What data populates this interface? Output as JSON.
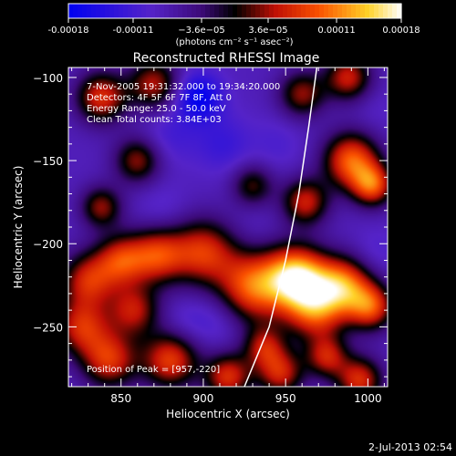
{
  "chart_data": {
    "type": "heatmap",
    "title": "Reconstructed RHESSI Image",
    "xlabel": "Heliocentric X (arcsec)",
    "ylabel": "Heliocentric Y (arcsec)",
    "xlim": [
      818,
      1012
    ],
    "ylim": [
      -286,
      -94
    ],
    "xticks": [
      850,
      900,
      950,
      1000
    ],
    "yticks": [
      -100,
      -150,
      -200,
      -250
    ],
    "colorbar": {
      "min": -0.00018,
      "max": 0.00018,
      "ticks": [
        {
          "value": -0.00018,
          "label": "-0.00018"
        },
        {
          "value": -0.00011,
          "label": "-0.00011"
        },
        {
          "value": -3.6e-05,
          "label": "−3.6e−05"
        },
        {
          "value": 3.6e-05,
          "label": "3.6e−05"
        },
        {
          "value": 0.00011,
          "label": "0.00011"
        },
        {
          "value": 0.00018,
          "label": "0.00018"
        }
      ],
      "units": "(photons cm⁻² s⁻¹ asec⁻²)"
    },
    "annotations": [
      "7-Nov-2005 19:31:32.000 to 19:34:20.000",
      "Detectors: 4F 5F 6F 7F 8F, Att 0",
      "Energy Range: 25.0 - 50.0 keV",
      "Clean    Total counts: 3.84E+03"
    ],
    "peak_label": "Position of Peak = [957,-220]",
    "peak": [
      957,
      -220
    ],
    "limb_curve": [
      [
        925,
        -286
      ],
      [
        940,
        -250
      ],
      [
        950,
        -210
      ],
      [
        958,
        -170
      ],
      [
        964,
        -130
      ],
      [
        969,
        -94
      ]
    ],
    "sources": [
      {
        "x": 957,
        "y": -220,
        "v": 0.00018,
        "r": 13
      },
      {
        "x": 930,
        "y": -226,
        "v": 0.00013,
        "r": 15
      },
      {
        "x": 985,
        "y": -225,
        "v": 0.00013,
        "r": 12
      },
      {
        "x": 1002,
        "y": -238,
        "v": 0.00011,
        "r": 10
      },
      {
        "x": 968,
        "y": -240,
        "v": 0.00011,
        "r": 13
      },
      {
        "x": 900,
        "y": -205,
        "v": 0.0001,
        "r": 14
      },
      {
        "x": 872,
        "y": -207,
        "v": 0.0001,
        "r": 12
      },
      {
        "x": 850,
        "y": -210,
        "v": 9e-05,
        "r": 11
      },
      {
        "x": 830,
        "y": -222,
        "v": 9e-05,
        "r": 12
      },
      {
        "x": 826,
        "y": -250,
        "v": 9e-05,
        "r": 12
      },
      {
        "x": 858,
        "y": -240,
        "v": 8e-05,
        "r": 11
      },
      {
        "x": 843,
        "y": -270,
        "v": 0.0001,
        "r": 12
      },
      {
        "x": 880,
        "y": -270,
        "v": 0.00011,
        "r": 12
      },
      {
        "x": 915,
        "y": -280,
        "v": 0.0001,
        "r": 10
      },
      {
        "x": 937,
        "y": -262,
        "v": 7e-05,
        "r": 9
      },
      {
        "x": 947,
        "y": -278,
        "v": 9e-05,
        "r": 10
      },
      {
        "x": 975,
        "y": -268,
        "v": 8e-05,
        "r": 9
      },
      {
        "x": 995,
        "y": -282,
        "v": 0.0001,
        "r": 10
      },
      {
        "x": 838,
        "y": -112,
        "v": 0.0001,
        "r": 11
      },
      {
        "x": 870,
        "y": -104,
        "v": 8e-05,
        "r": 11
      },
      {
        "x": 960,
        "y": -110,
        "v": 7e-05,
        "r": 10
      },
      {
        "x": 988,
        "y": -100,
        "v": 9e-05,
        "r": 10
      },
      {
        "x": 990,
        "y": -150,
        "v": 0.00013,
        "r": 12
      },
      {
        "x": 1003,
        "y": -165,
        "v": 0.00011,
        "r": 9
      },
      {
        "x": 962,
        "y": -175,
        "v": 9e-05,
        "r": 10
      },
      {
        "x": 860,
        "y": -150,
        "v": 7e-05,
        "r": 10
      },
      {
        "x": 838,
        "y": -178,
        "v": 7e-05,
        "r": 9
      },
      {
        "x": 930,
        "y": -165,
        "v": 5e-05,
        "r": 9
      },
      {
        "x": 897,
        "y": -112,
        "v": -0.00014,
        "r": 10
      },
      {
        "x": 912,
        "y": -140,
        "v": -8e-05,
        "r": 12
      },
      {
        "x": 880,
        "y": -135,
        "v": -7e-05,
        "r": 12
      },
      {
        "x": 945,
        "y": -140,
        "v": -6e-05,
        "r": 11
      },
      {
        "x": 875,
        "y": -180,
        "v": -6e-05,
        "r": 11
      },
      {
        "x": 930,
        "y": -192,
        "v": -5e-05,
        "r": 10
      },
      {
        "x": 908,
        "y": -245,
        "v": -7e-05,
        "r": 12
      },
      {
        "x": 888,
        "y": -248,
        "v": -6e-05,
        "r": 10
      },
      {
        "x": 1005,
        "y": -205,
        "v": -6e-05,
        "r": 10
      },
      {
        "x": 1005,
        "y": -120,
        "v": -5e-05,
        "r": 10
      },
      {
        "x": 940,
        "y": -115,
        "v": -4e-05,
        "r": 9
      },
      {
        "x": 975,
        "y": -125,
        "v": -4e-05,
        "r": 8
      }
    ]
  },
  "footer": {
    "date": "2-Jul-2013 02:54"
  }
}
